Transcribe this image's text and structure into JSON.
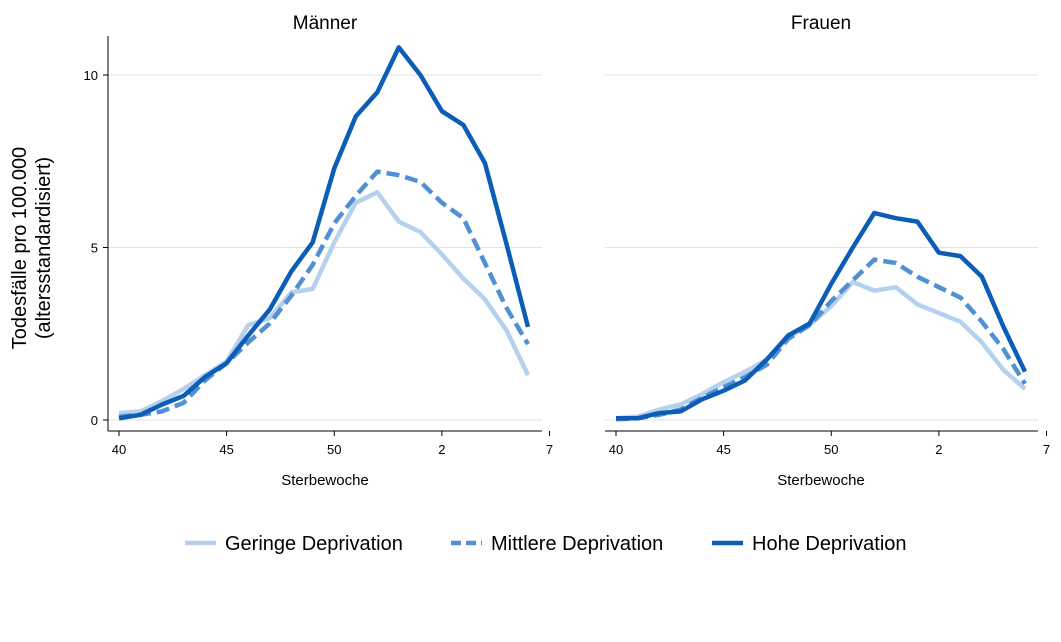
{
  "chart_data": [
    {
      "type": "line",
      "title": "Männer",
      "xlabel": "Sterbewoche",
      "ylabel": [
        "Todesfälle pro 100.000",
        "(altersstandardisiert)"
      ],
      "x": [
        40,
        41,
        42,
        43,
        44,
        45,
        46,
        47,
        48,
        49,
        50,
        51,
        52,
        53,
        1,
        2,
        3,
        4,
        5,
        6
      ],
      "x_ticks": [
        "40",
        "45",
        "50",
        "2",
        "7"
      ],
      "y_ticks": [
        0,
        5,
        10
      ],
      "ylim": [
        -0.3,
        11.2
      ],
      "grid": true,
      "series": [
        {
          "name": "Geringe Deprivation",
          "color": "#b5d1ee",
          "style": "solid",
          "values": [
            0.2,
            0.25,
            0.55,
            0.9,
            1.3,
            1.7,
            2.75,
            2.95,
            3.7,
            3.8,
            5.15,
            6.3,
            6.6,
            5.75,
            5.45,
            4.8,
            4.1,
            3.5,
            2.6,
            1.3
          ]
        },
        {
          "name": "Mittlere Deprivation",
          "color": "#5090d3",
          "style": "dash",
          "values": [
            0.1,
            0.15,
            0.25,
            0.5,
            1.15,
            1.65,
            2.25,
            2.8,
            3.6,
            4.5,
            5.7,
            6.5,
            7.2,
            7.1,
            6.9,
            6.3,
            5.85,
            4.55,
            3.25,
            2.2
          ]
        },
        {
          "name": "Hohe Deprivation",
          "color": "#0b5db5",
          "style": "solid",
          "values": [
            0.05,
            0.15,
            0.45,
            0.7,
            1.25,
            1.65,
            2.45,
            3.2,
            4.3,
            5.15,
            7.3,
            8.8,
            9.5,
            10.8,
            10.0,
            8.95,
            8.55,
            7.45,
            5.1,
            2.7
          ]
        }
      ]
    },
    {
      "type": "line",
      "title": "Frauen",
      "xlabel": "Sterbewoche",
      "x": [
        40,
        41,
        42,
        43,
        44,
        45,
        46,
        47,
        48,
        49,
        50,
        51,
        52,
        53,
        1,
        2,
        3,
        4,
        5,
        6
      ],
      "x_ticks": [
        "40",
        "45",
        "50",
        "2",
        "7"
      ],
      "y_ticks": [
        0,
        5,
        10
      ],
      "ylim": [
        -0.3,
        11.2
      ],
      "grid": true,
      "series": [
        {
          "name": "Geringe Deprivation",
          "color": "#b5d1ee",
          "style": "solid",
          "values": [
            0.05,
            0.1,
            0.3,
            0.45,
            0.75,
            1.1,
            1.4,
            1.75,
            2.4,
            2.75,
            3.3,
            4.0,
            3.75,
            3.85,
            3.35,
            3.1,
            2.85,
            2.25,
            1.45,
            0.9
          ]
        },
        {
          "name": "Mittlere Deprivation",
          "color": "#5090d3",
          "style": "dash",
          "values": [
            0.02,
            0.05,
            0.15,
            0.3,
            0.65,
            0.95,
            1.25,
            1.6,
            2.35,
            2.75,
            3.45,
            4.05,
            4.65,
            4.55,
            4.15,
            3.85,
            3.55,
            2.85,
            2.05,
            1.05
          ]
        },
        {
          "name": "Hohe Deprivation",
          "color": "#0b5db5",
          "style": "solid",
          "values": [
            0.05,
            0.05,
            0.2,
            0.25,
            0.6,
            0.85,
            1.15,
            1.75,
            2.45,
            2.8,
            3.95,
            5.0,
            6.0,
            5.85,
            5.75,
            4.85,
            4.75,
            4.15,
            2.7,
            1.4
          ]
        }
      ]
    }
  ],
  "legend": {
    "position": "bottom",
    "items": [
      {
        "label": "Geringe Deprivation",
        "color": "#b5d1ee",
        "style": "solid"
      },
      {
        "label": "Mittlere Deprivation",
        "color": "#5090d3",
        "style": "dash"
      },
      {
        "label": "Hohe Deprivation",
        "color": "#0b5db5",
        "style": "solid"
      }
    ]
  }
}
